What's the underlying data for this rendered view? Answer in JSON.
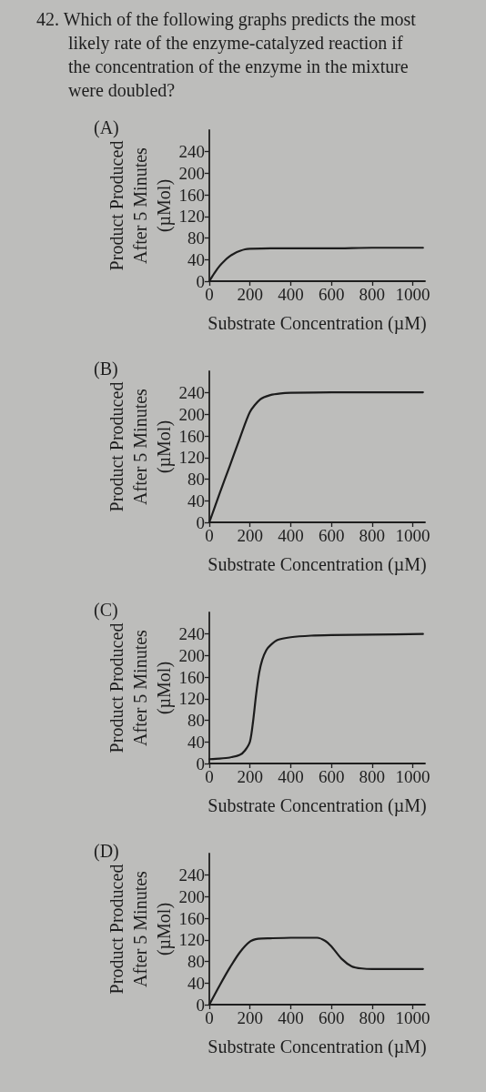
{
  "chart_data": [
    {
      "type": "line",
      "title": "(A)",
      "annotations": [
        "42. Which of the following graphs predicts the most likely rate of the enzyme-catalyzed reaction if the concentration of the enzyme in the mixture were doubled?"
      ],
      "xlabel": "Substrate Concentration (µM)",
      "ylabel": "Product Produced\nAfter 5 Minutes\n(µMol)",
      "x": [
        0,
        25,
        50,
        75,
        100,
        125,
        150,
        175,
        200,
        300,
        400,
        600,
        800,
        1050
      ],
      "values": [
        0,
        15,
        28,
        38,
        46,
        52,
        56,
        59,
        60,
        61,
        61,
        61,
        62,
        62
      ],
      "color": "#1c1c1c",
      "line_style": "solid",
      "xlim": [
        0,
        1060
      ],
      "ylim": [
        0,
        280
      ],
      "xticks": [
        0,
        200,
        400,
        600,
        800,
        1000
      ],
      "yticks": [
        0,
        40,
        80,
        120,
        160,
        200,
        240
      ]
    },
    {
      "type": "line",
      "title": "(B)",
      "xlabel": "Substrate Concentration (µM)",
      "ylabel": "Product Produced\nAfter 5 Minutes\n(µMol)",
      "x": [
        0,
        50,
        100,
        150,
        200,
        250,
        300,
        350,
        400,
        600,
        800,
        1050
      ],
      "values": [
        0,
        53,
        104,
        156,
        205,
        228,
        236,
        239,
        240,
        241,
        241,
        241
      ],
      "color": "#1c1c1c",
      "line_style": "solid",
      "xlim": [
        0,
        1060
      ],
      "ylim": [
        0,
        280
      ],
      "xticks": [
        0,
        200,
        400,
        600,
        800,
        1000
      ],
      "yticks": [
        0,
        40,
        80,
        120,
        160,
        200,
        240
      ]
    },
    {
      "type": "line",
      "title": "(C)",
      "xlabel": "Substrate Concentration (µM)",
      "ylabel": "Product Produced\nAfter 5 Minutes\n(µMol)",
      "x": [
        0,
        50,
        100,
        150,
        175,
        200,
        215,
        230,
        245,
        260,
        280,
        300,
        335,
        400,
        500,
        600,
        800,
        1050
      ],
      "values": [
        8,
        9,
        11,
        16,
        24,
        41,
        78,
        128,
        168,
        192,
        210,
        219,
        229,
        234,
        237,
        238,
        239,
        240
      ],
      "color": "#1c1c1c",
      "line_style": "solid",
      "xlim": [
        0,
        1060
      ],
      "ylim": [
        0,
        280
      ],
      "xticks": [
        0,
        200,
        400,
        600,
        800,
        1000
      ],
      "yticks": [
        0,
        40,
        80,
        120,
        160,
        200,
        240
      ]
    },
    {
      "type": "line",
      "title": "(D)",
      "xlabel": "Substrate Concentration (µM)",
      "ylabel": "Product Produced\nAfter 5 Minutes\n(µMol)",
      "x": [
        0,
        50,
        100,
        150,
        200,
        240,
        300,
        400,
        530,
        570,
        600,
        650,
        700,
        750,
        800,
        1050
      ],
      "values": [
        0,
        35,
        68,
        97,
        117,
        122,
        123,
        124,
        124,
        118,
        108,
        85,
        71,
        67,
        66,
        66
      ],
      "color": "#1c1c1c",
      "line_style": "solid",
      "xlim": [
        0,
        1060
      ],
      "ylim": [
        0,
        280
      ],
      "xticks": [
        0,
        200,
        400,
        600,
        800,
        1000
      ],
      "yticks": [
        0,
        40,
        80,
        120,
        160,
        200,
        240
      ]
    }
  ]
}
